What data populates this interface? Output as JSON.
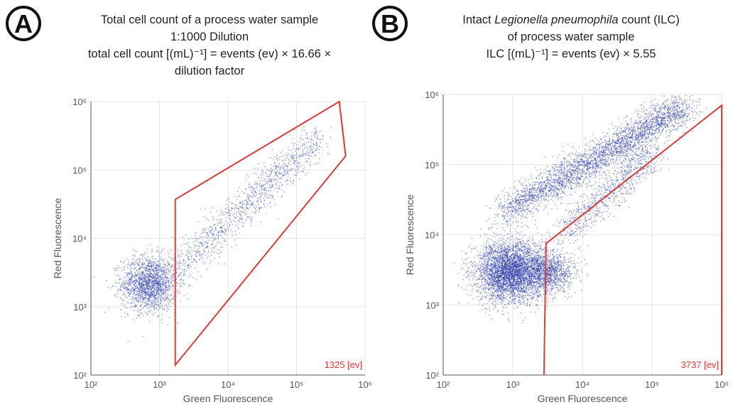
{
  "panels": [
    {
      "label": "A",
      "title_lines": [
        "Total cell count of a process water sample",
        "1:1000 Dilution",
        "total cell count [(mL)⁻¹]  = events (ev) × 16.66 ×",
        "dilution factor"
      ]
    },
    {
      "label": "B",
      "title_line1_pre": "Intact ",
      "title_line1_italic": "Legionella pneumophila",
      "title_line1_post": " count (ILC)",
      "title_lines_rest": [
        "of process water sample",
        "ILC [(mL)⁻¹]  = events (ev) × 5.55"
      ]
    }
  ],
  "chart_data": [
    {
      "type": "scatter",
      "xlabel": "Green Fluorescence",
      "ylabel": "Red Fluorescence",
      "xscale": "log",
      "yscale": "log",
      "xlim": [
        100,
        1000000
      ],
      "ylim": [
        100,
        1000000
      ],
      "x_ticks": [
        "10²",
        "10³",
        "10⁴",
        "10⁵",
        "10⁶"
      ],
      "y_ticks": [
        "10²",
        "10³",
        "10⁴",
        "10⁵",
        "10⁶"
      ],
      "grid": true,
      "point_color": "#2a3aa8",
      "gate_color": "#e03a3a",
      "gate_polygon": [
        [
          1700,
          37000
        ],
        [
          420000,
          1000000
        ],
        [
          520000,
          160000
        ],
        [
          1700,
          140
        ]
      ],
      "gate_count_label": "1325 [ev]",
      "populations": [
        {
          "center": [
            700,
            2200
          ],
          "spread": [
            0.2,
            0.2
          ],
          "n": 1800
        },
        {
          "trend_from": [
            1500,
            3000
          ],
          "trend_to": [
            200000,
            300000
          ],
          "n": 1200
        }
      ]
    },
    {
      "type": "scatter",
      "xlabel": "Green Fluorescence",
      "ylabel": "Red Fluorescence",
      "xscale": "log",
      "yscale": "log",
      "xlim": [
        100,
        1000000
      ],
      "ylim": [
        100,
        1000000
      ],
      "x_ticks": [
        "10²",
        "10³",
        "10⁴",
        "10⁵",
        "10⁶"
      ],
      "y_ticks": [
        "10²",
        "10³",
        "10⁴",
        "10⁵",
        "10⁶"
      ],
      "grid": true,
      "point_color": "#2a3aa8",
      "gate_color": "#e03a3a",
      "gate_polygon": [
        [
          2800,
          100
        ],
        [
          3000,
          7500
        ],
        [
          1000000,
          700000
        ],
        [
          1000000,
          100
        ]
      ],
      "gate_count_label": "3737 [ev]",
      "populations": [
        {
          "center": [
            900,
            3000
          ],
          "spread": [
            0.25,
            0.22
          ],
          "n": 4000
        },
        {
          "center": [
            3000,
            3000
          ],
          "spread": [
            0.2,
            0.15
          ],
          "n": 1200
        },
        {
          "trend_from": [
            700,
            20000
          ],
          "trend_to": [
            300000,
            700000
          ],
          "n": 3500
        },
        {
          "trend_from": [
            5000,
            10000
          ],
          "trend_to": [
            100000,
            150000
          ],
          "n": 900
        }
      ]
    }
  ]
}
